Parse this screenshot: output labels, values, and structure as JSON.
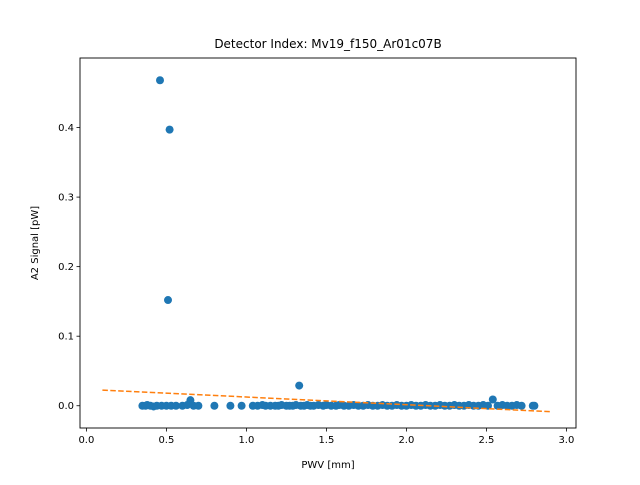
{
  "chart_data": {
    "type": "scatter",
    "title": "Detector Index: Mv19_f150_Ar01c07B",
    "xlabel": "PWV [mm]",
    "ylabel": "A2 Signal [pW]",
    "xlim": [
      -0.04,
      3.06
    ],
    "ylim": [
      -0.032,
      0.5
    ],
    "xticks": [
      {
        "value": 0.0,
        "label": "0.0"
      },
      {
        "value": 0.5,
        "label": "0.5"
      },
      {
        "value": 1.0,
        "label": "1.0"
      },
      {
        "value": 1.5,
        "label": "1.5"
      },
      {
        "value": 2.0,
        "label": "2.0"
      },
      {
        "value": 2.5,
        "label": "2.5"
      },
      {
        "value": 3.0,
        "label": "3.0"
      }
    ],
    "yticks": [
      {
        "value": 0.0,
        "label": "0.0"
      },
      {
        "value": 0.1,
        "label": "0.1"
      },
      {
        "value": 0.2,
        "label": "0.2"
      },
      {
        "value": 0.3,
        "label": "0.3"
      },
      {
        "value": 0.4,
        "label": "0.4"
      }
    ],
    "grid": false,
    "series": [
      {
        "kind": "scatter",
        "color": "#1f77b4",
        "points": [
          [
            0.46,
            0.468
          ],
          [
            0.52,
            0.397
          ],
          [
            0.51,
            0.152
          ],
          [
            1.33,
            0.029
          ],
          [
            2.54,
            0.009
          ],
          [
            0.65,
            0.008
          ],
          [
            0.35,
            0.0
          ],
          [
            0.37,
            0.0
          ],
          [
            0.38,
            0.001
          ],
          [
            0.4,
            0.0
          ],
          [
            0.42,
            -0.001
          ],
          [
            0.44,
            0.0
          ],
          [
            0.47,
            0.0
          ],
          [
            0.5,
            0.0
          ],
          [
            0.53,
            0.0
          ],
          [
            0.56,
            0.0
          ],
          [
            0.6,
            0.0
          ],
          [
            0.63,
            0.001
          ],
          [
            0.67,
            0.0
          ],
          [
            0.7,
            0.0
          ],
          [
            0.8,
            0.0
          ],
          [
            0.9,
            0.0
          ],
          [
            0.97,
            0.0
          ],
          [
            1.04,
            0.0
          ],
          [
            1.07,
            0.0
          ],
          [
            1.1,
            0.001
          ],
          [
            1.12,
            0.0
          ],
          [
            1.15,
            0.0
          ],
          [
            1.18,
            0.0
          ],
          [
            1.2,
            0.0
          ],
          [
            1.22,
            0.001
          ],
          [
            1.25,
            0.0
          ],
          [
            1.27,
            0.0
          ],
          [
            1.29,
            0.0
          ],
          [
            1.31,
            0.001
          ],
          [
            1.34,
            0.0
          ],
          [
            1.36,
            0.0
          ],
          [
            1.38,
            0.001
          ],
          [
            1.4,
            0.0
          ],
          [
            1.42,
            0.0
          ],
          [
            1.45,
            0.001
          ],
          [
            1.48,
            0.0
          ],
          [
            1.5,
            0.001
          ],
          [
            1.53,
            0.0
          ],
          [
            1.56,
            0.0
          ],
          [
            1.58,
            0.001
          ],
          [
            1.61,
            0.0
          ],
          [
            1.64,
            0.0
          ],
          [
            1.67,
            0.001
          ],
          [
            1.7,
            0.0
          ],
          [
            1.73,
            0.0
          ],
          [
            1.76,
            0.001
          ],
          [
            1.79,
            0.0
          ],
          [
            1.82,
            0.0
          ],
          [
            1.85,
            0.001
          ],
          [
            1.88,
            0.0
          ],
          [
            1.91,
            0.0
          ],
          [
            1.94,
            0.001
          ],
          [
            1.97,
            0.0
          ],
          [
            2.0,
            0.0
          ],
          [
            2.03,
            0.001
          ],
          [
            2.06,
            0.0
          ],
          [
            2.09,
            0.0
          ],
          [
            2.12,
            0.001
          ],
          [
            2.15,
            0.0
          ],
          [
            2.18,
            0.0
          ],
          [
            2.21,
            0.001
          ],
          [
            2.24,
            0.0
          ],
          [
            2.27,
            0.0
          ],
          [
            2.3,
            0.001
          ],
          [
            2.33,
            0.0
          ],
          [
            2.36,
            0.0
          ],
          [
            2.39,
            0.001
          ],
          [
            2.42,
            0.0
          ],
          [
            2.45,
            0.0
          ],
          [
            2.48,
            0.001
          ],
          [
            2.51,
            0.0
          ],
          [
            2.57,
            0.0
          ],
          [
            2.6,
            0.001
          ],
          [
            2.63,
            0.0
          ],
          [
            2.66,
            0.0
          ],
          [
            2.69,
            0.001
          ],
          [
            2.72,
            0.0
          ],
          [
            2.79,
            0.0
          ],
          [
            2.8,
            0.0
          ]
        ]
      },
      {
        "kind": "line",
        "style": "dashed",
        "color": "#ff7f0e",
        "points": [
          [
            0.1,
            0.0225
          ],
          [
            2.9,
            -0.0085
          ]
        ]
      }
    ]
  }
}
